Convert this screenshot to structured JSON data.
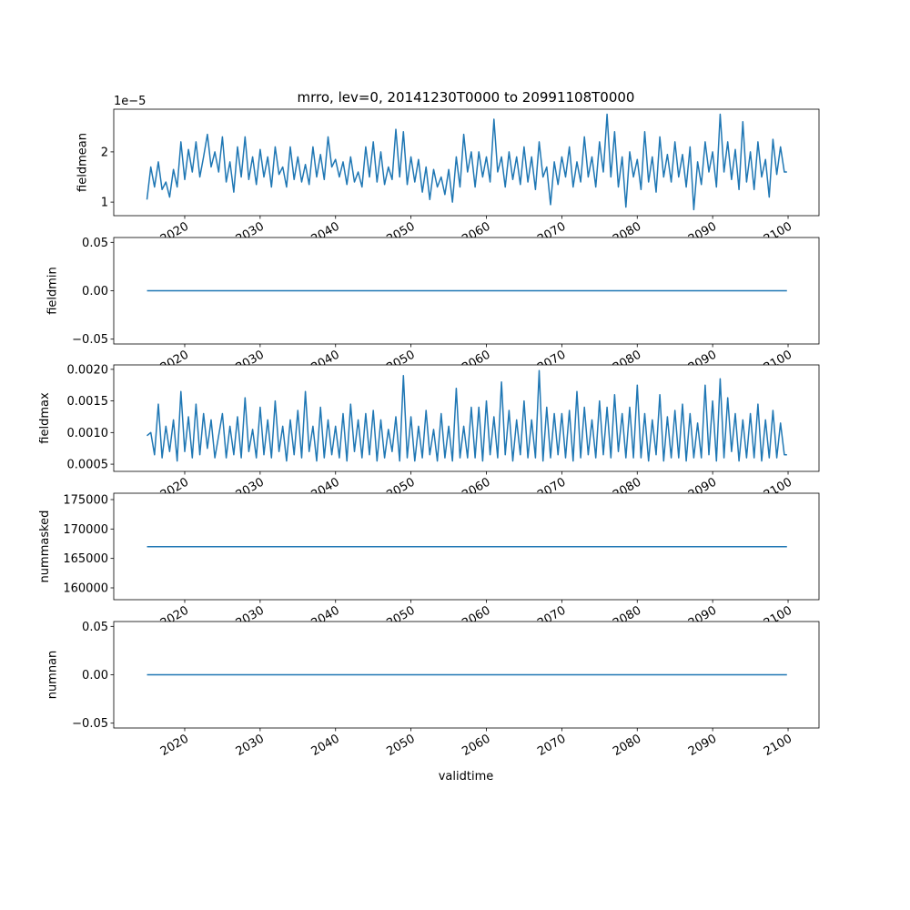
{
  "chart_data": {
    "type": "line",
    "title": "mrro, lev=0, 20141230T0000 to 20991108T0000",
    "xlabel": "validtime",
    "line_color": "#1f77b4",
    "x_ticks": [
      2020,
      2030,
      2040,
      2050,
      2060,
      2070,
      2080,
      2090,
      2100
    ],
    "x_tick_labels": [
      "2020",
      "2030",
      "2040",
      "2050",
      "2060",
      "2070",
      "2080",
      "2090",
      "2100"
    ],
    "xlim": [
      2010.59,
      2104.1
    ],
    "x_start": 2015.0,
    "x_step": 0.5,
    "panels": [
      {
        "ylabel": "fieldmean",
        "offset_text": "1e−5",
        "scale": 1e-05,
        "ylim": [
          0.73,
          2.85
        ],
        "yticks": [
          1,
          2
        ],
        "ytick_labels": [
          "1",
          "2"
        ],
        "values": [
          1.05,
          1.7,
          1.3,
          1.8,
          1.25,
          1.4,
          1.1,
          1.65,
          1.3,
          2.2,
          1.45,
          2.05,
          1.6,
          2.2,
          1.5,
          1.9,
          2.35,
          1.7,
          2.0,
          1.6,
          2.3,
          1.4,
          1.8,
          1.2,
          2.1,
          1.5,
          2.3,
          1.45,
          1.9,
          1.35,
          2.05,
          1.5,
          1.9,
          1.3,
          2.1,
          1.55,
          1.7,
          1.3,
          2.1,
          1.45,
          1.9,
          1.4,
          1.75,
          1.35,
          2.1,
          1.5,
          1.95,
          1.45,
          2.3,
          1.7,
          1.85,
          1.5,
          1.8,
          1.35,
          1.9,
          1.4,
          1.6,
          1.3,
          2.1,
          1.5,
          2.2,
          1.4,
          2.0,
          1.35,
          1.7,
          1.45,
          2.45,
          1.5,
          2.4,
          1.35,
          1.9,
          1.4,
          1.85,
          1.2,
          1.7,
          1.05,
          1.65,
          1.3,
          1.5,
          1.15,
          1.65,
          1.0,
          1.9,
          1.3,
          2.35,
          1.6,
          2.0,
          1.3,
          2.0,
          1.5,
          1.9,
          1.4,
          2.65,
          1.6,
          1.9,
          1.3,
          2.0,
          1.45,
          1.9,
          1.35,
          2.1,
          1.4,
          1.9,
          1.25,
          2.2,
          1.5,
          1.7,
          0.95,
          1.8,
          1.35,
          1.9,
          1.5,
          2.1,
          1.3,
          1.8,
          1.4,
          2.3,
          1.5,
          1.9,
          1.3,
          2.2,
          1.6,
          2.75,
          1.5,
          2.4,
          1.3,
          1.9,
          0.9,
          2.0,
          1.5,
          1.85,
          1.25,
          2.4,
          1.4,
          1.9,
          1.2,
          2.3,
          1.5,
          1.95,
          1.4,
          2.2,
          1.5,
          1.95,
          1.3,
          2.1,
          0.85,
          1.8,
          1.35,
          2.2,
          1.6,
          2.0,
          1.3,
          2.75,
          1.6,
          2.2,
          1.45,
          2.05,
          1.25,
          2.6,
          1.4,
          2.0,
          1.25,
          2.2,
          1.5,
          1.85,
          1.1,
          2.25,
          1.55,
          2.1,
          1.6
        ]
      },
      {
        "ylabel": "fieldmin",
        "scale": 1,
        "ylim": [
          -0.055,
          0.055
        ],
        "yticks": [
          -0.05,
          0.0,
          0.05
        ],
        "ytick_labels": [
          "−0.05",
          "0.00",
          "0.05"
        ],
        "constant": 0.0
      },
      {
        "ylabel": "fieldmax",
        "scale": 0.001,
        "ylim": [
          0.386,
          2.07
        ],
        "yticks": [
          0.5,
          1.0,
          1.5,
          2.0
        ],
        "ytick_labels": [
          "0.0005",
          "0.0010",
          "0.0015",
          "0.0020"
        ],
        "values": [
          0.95,
          1.0,
          0.65,
          1.45,
          0.6,
          1.1,
          0.7,
          1.2,
          0.55,
          1.65,
          0.7,
          1.25,
          0.6,
          1.45,
          0.65,
          1.3,
          0.75,
          1.2,
          0.6,
          0.95,
          1.3,
          0.6,
          1.1,
          0.65,
          1.25,
          0.6,
          1.55,
          0.7,
          1.05,
          0.6,
          1.4,
          0.65,
          1.2,
          0.6,
          1.5,
          0.7,
          1.1,
          0.55,
          1.2,
          0.65,
          1.35,
          0.6,
          1.65,
          0.7,
          1.1,
          0.55,
          1.4,
          0.6,
          1.2,
          0.65,
          1.1,
          0.6,
          1.3,
          0.55,
          1.45,
          0.7,
          1.2,
          0.6,
          1.3,
          0.65,
          1.35,
          0.55,
          1.2,
          0.6,
          1.05,
          0.7,
          1.25,
          0.55,
          1.9,
          0.6,
          1.25,
          0.55,
          1.1,
          0.6,
          1.35,
          0.65,
          1.05,
          0.55,
          1.3,
          0.6,
          1.1,
          0.55,
          1.7,
          0.6,
          1.1,
          0.6,
          1.4,
          0.6,
          1.4,
          0.55,
          1.5,
          0.65,
          1.25,
          0.6,
          1.8,
          0.65,
          1.35,
          0.55,
          1.2,
          0.65,
          1.5,
          0.6,
          1.2,
          0.6,
          1.98,
          0.55,
          1.4,
          0.6,
          1.3,
          0.65,
          1.3,
          0.6,
          1.35,
          0.55,
          1.65,
          0.6,
          1.4,
          0.65,
          1.2,
          0.6,
          1.5,
          0.65,
          1.4,
          0.6,
          1.6,
          0.7,
          1.3,
          0.6,
          1.4,
          0.6,
          1.75,
          0.6,
          1.3,
          0.55,
          1.2,
          0.65,
          1.6,
          0.55,
          1.25,
          0.6,
          1.35,
          0.6,
          1.45,
          0.55,
          1.3,
          0.6,
          1.15,
          0.6,
          1.75,
          0.65,
          1.5,
          0.55,
          1.85,
          0.6,
          1.55,
          0.7,
          1.3,
          0.55,
          1.2,
          0.6,
          1.3,
          0.6,
          1.45,
          0.55,
          1.2,
          0.6,
          1.35,
          0.6,
          1.15,
          0.65
        ]
      },
      {
        "ylabel": "nummasked",
        "scale": 1,
        "ylim": [
          157990,
          176080
        ],
        "yticks": [
          160000,
          165000,
          170000,
          175000
        ],
        "ytick_labels": [
          "160000",
          "165000",
          "170000",
          "175000"
        ],
        "constant": 167000
      },
      {
        "ylabel": "numnan",
        "scale": 1,
        "ylim": [
          -0.055,
          0.055
        ],
        "yticks": [
          -0.05,
          0.0,
          0.05
        ],
        "ytick_labels": [
          "−0.05",
          "0.00",
          "0.05"
        ],
        "constant": 0.0
      }
    ]
  }
}
